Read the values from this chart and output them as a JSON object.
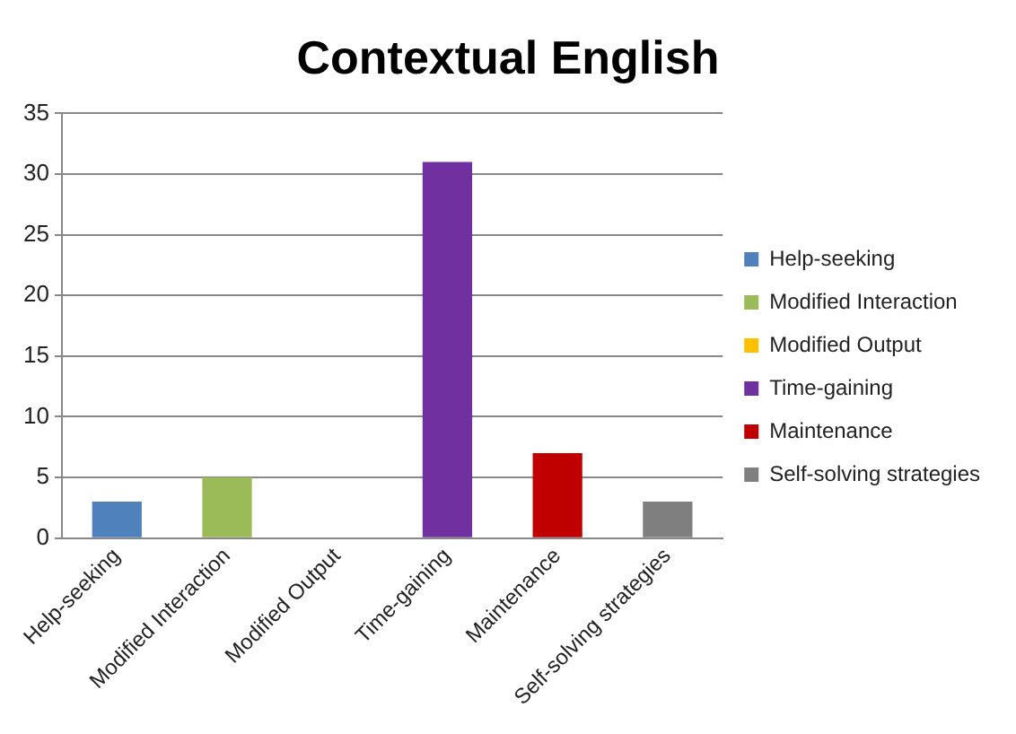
{
  "chart_data": {
    "type": "bar",
    "title": "Contextual English",
    "categories": [
      "Help-seeking",
      "Modified Interaction",
      "Modified Output",
      "Time-gaining",
      "Maintenance",
      "Self-solving strategies"
    ],
    "series": [
      {
        "name": "Help-seeking",
        "color": "#4f81bd",
        "values": [
          3,
          null,
          null,
          null,
          null,
          null
        ]
      },
      {
        "name": "Modified Interaction",
        "color": "#9bbb59",
        "values": [
          null,
          5,
          null,
          null,
          null,
          null
        ]
      },
      {
        "name": "Modified Output",
        "color": "#ffc000",
        "values": [
          null,
          null,
          0,
          null,
          null,
          null
        ]
      },
      {
        "name": "Time-gaining",
        "color": "#7030a0",
        "values": [
          null,
          null,
          null,
          31,
          null,
          null
        ]
      },
      {
        "name": "Maintenance",
        "color": "#c00000",
        "values": [
          null,
          null,
          null,
          null,
          7,
          null
        ]
      },
      {
        "name": "Self-solving strategies",
        "color": "#7f7f7f",
        "values": [
          null,
          null,
          null,
          null,
          null,
          3
        ]
      }
    ],
    "ylim": [
      0,
      35
    ],
    "yticks": [
      0,
      5,
      10,
      15,
      20,
      25,
      30,
      35
    ],
    "grid": "y",
    "legend": "right"
  }
}
